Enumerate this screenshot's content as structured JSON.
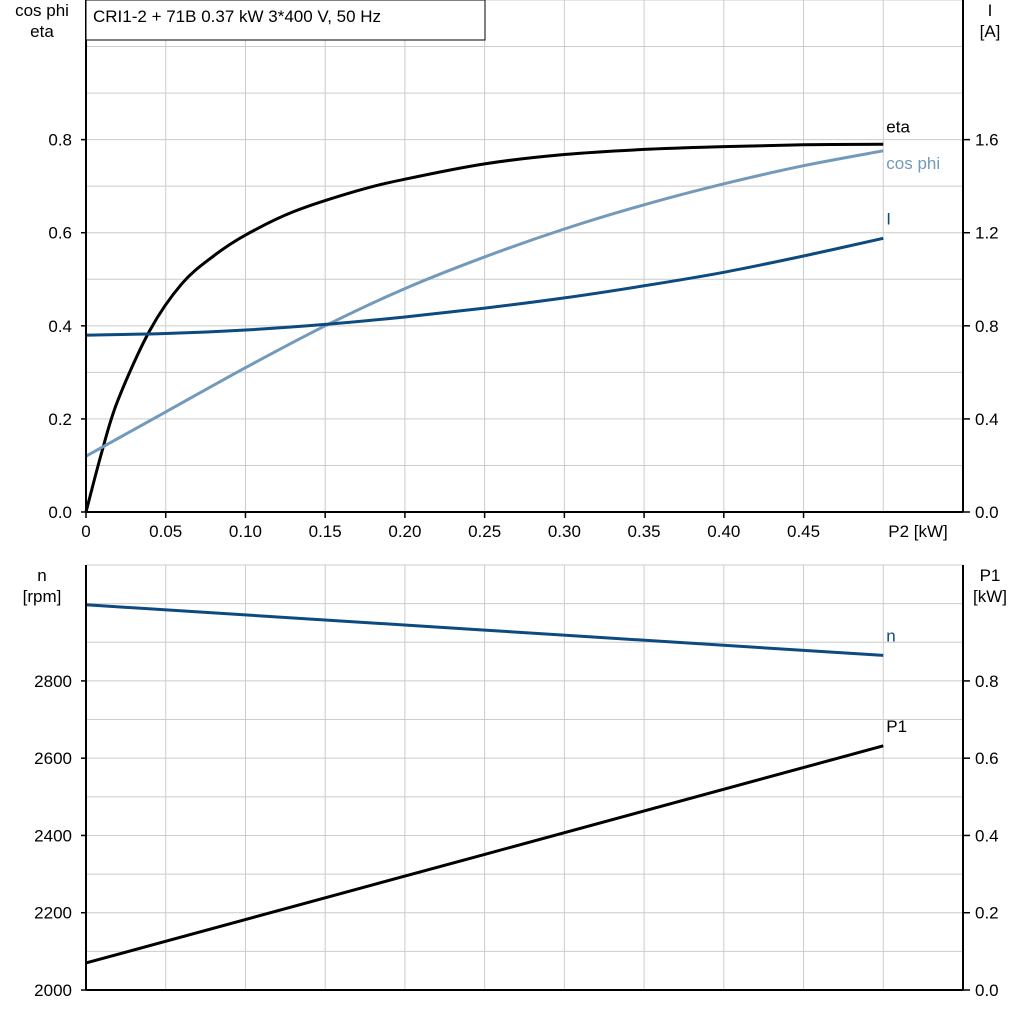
{
  "title": "CRI1-2 + 71B   0.37 kW   3*400 V, 50 Hz",
  "colors": {
    "eta": "#000000",
    "cos_phi": "#7399bb",
    "I": "#0c4a80",
    "n": "#0c4a80",
    "P1": "#000000",
    "grid": "#cccccc"
  },
  "chart_data": [
    {
      "type": "line",
      "xlabel": "P2 [kW]",
      "x_ticks": [
        "0",
        "0.05",
        "0.10",
        "0.15",
        "0.20",
        "0.25",
        "0.30",
        "0.35",
        "0.40",
        "0.45"
      ],
      "xlim": [
        0,
        0.55
      ],
      "ylabel_left": [
        "cos phi",
        "eta"
      ],
      "ylim_left": [
        0,
        1.1
      ],
      "y_ticks_left": [
        "0.0",
        "0.2",
        "0.4",
        "0.6",
        "0.8"
      ],
      "ylabel_right": [
        "I",
        "[A]"
      ],
      "ylim_right": [
        0,
        2.2
      ],
      "y_ticks_right": [
        "0.0",
        "0.4",
        "0.8",
        "1.2",
        "1.6"
      ],
      "grid": true,
      "series": [
        {
          "name": "eta",
          "axis": "left",
          "x": [
            0,
            0.01,
            0.02,
            0.04,
            0.06,
            0.08,
            0.1,
            0.13,
            0.17,
            0.2,
            0.25,
            0.3,
            0.35,
            0.4,
            0.45,
            0.5
          ],
          "y": [
            0,
            0.13,
            0.24,
            0.39,
            0.49,
            0.55,
            0.595,
            0.645,
            0.69,
            0.715,
            0.748,
            0.768,
            0.779,
            0.785,
            0.789,
            0.79
          ]
        },
        {
          "name": "cos phi",
          "axis": "left",
          "x": [
            0,
            0.05,
            0.1,
            0.15,
            0.2,
            0.25,
            0.3,
            0.35,
            0.4,
            0.45,
            0.5
          ],
          "y": [
            0.12,
            0.215,
            0.31,
            0.4,
            0.48,
            0.548,
            0.608,
            0.66,
            0.705,
            0.744,
            0.776
          ]
        },
        {
          "name": "I",
          "axis": "right",
          "x": [
            0,
            0.05,
            0.1,
            0.15,
            0.2,
            0.25,
            0.3,
            0.35,
            0.4,
            0.45,
            0.5
          ],
          "y": [
            0.76,
            0.767,
            0.782,
            0.806,
            0.838,
            0.876,
            0.92,
            0.972,
            1.03,
            1.1,
            1.176
          ]
        }
      ]
    },
    {
      "type": "line",
      "xlim": [
        0,
        0.55
      ],
      "ylabel_left": [
        "n",
        "[rpm]"
      ],
      "ylim_left": [
        2000,
        3100
      ],
      "y_ticks_left": [
        "2000",
        "2200",
        "2400",
        "2600",
        "2800"
      ],
      "ylabel_right": [
        "P1",
        "[kW]"
      ],
      "ylim_right": [
        0,
        1.1
      ],
      "y_ticks_right": [
        "0.0",
        "0.2",
        "0.4",
        "0.6",
        "0.8"
      ],
      "grid": true,
      "series": [
        {
          "name": "n",
          "axis": "left",
          "x": [
            0,
            0.5
          ],
          "y": [
            2997,
            2866
          ]
        },
        {
          "name": "P1",
          "axis": "right",
          "x": [
            0,
            0.5
          ],
          "y": [
            0.07,
            0.632
          ]
        }
      ]
    }
  ]
}
